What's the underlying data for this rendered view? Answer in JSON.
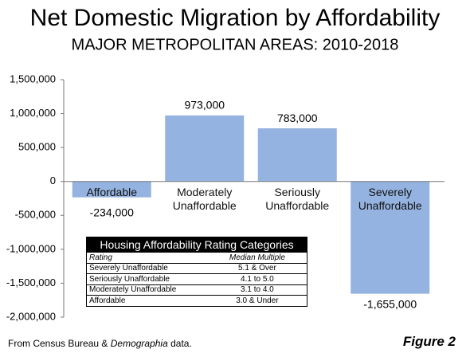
{
  "chart_data": {
    "type": "bar",
    "title": "Net Domestic Migration by Affordability",
    "subtitle": "MAJOR METROPOLITAN AREAS: 2010-2018",
    "categories": [
      "Affordable",
      "Moderately Unaffordable",
      "Seriously Unaffordable",
      "Severely Unaffordable"
    ],
    "values": [
      -234000,
      973000,
      783000,
      -1655000
    ],
    "value_labels": [
      "-234,000",
      "973,000",
      "783,000",
      "-1,655,000"
    ],
    "color": "#95b3e0",
    "ylim": [
      -2000000,
      1500000
    ],
    "yticks": [
      {
        "value": -2000000,
        "label": "-2,000,000"
      },
      {
        "value": -1500000,
        "label": "-1,500,000"
      },
      {
        "value": -1000000,
        "label": "-1,000,000"
      },
      {
        "value": -500000,
        "label": "-500,000"
      },
      0,
      {
        "value": 500000,
        "label": "500,000"
      },
      {
        "value": 1000000,
        "label": "1,000,000"
      },
      {
        "value": 1500000,
        "label": "1,500,000"
      }
    ],
    "grid": false,
    "rating_table": {
      "title": "Housing Affordability Rating Categories",
      "columns": [
        "Rating",
        "Median Multiple"
      ],
      "rows": [
        [
          "Severely Unaffordable",
          "5.1 & Over"
        ],
        [
          "Seriously Unaffordable",
          "4.1 to 5.0"
        ],
        [
          "Moderately Unaffordable",
          "3.1 to 4.0"
        ],
        [
          "Affordable",
          "3.0 & Under"
        ]
      ]
    },
    "source": {
      "before": "From Census Bureau &",
      "emphasis": "Demographia",
      "after": "data."
    },
    "figure_label": "Figure 2"
  }
}
